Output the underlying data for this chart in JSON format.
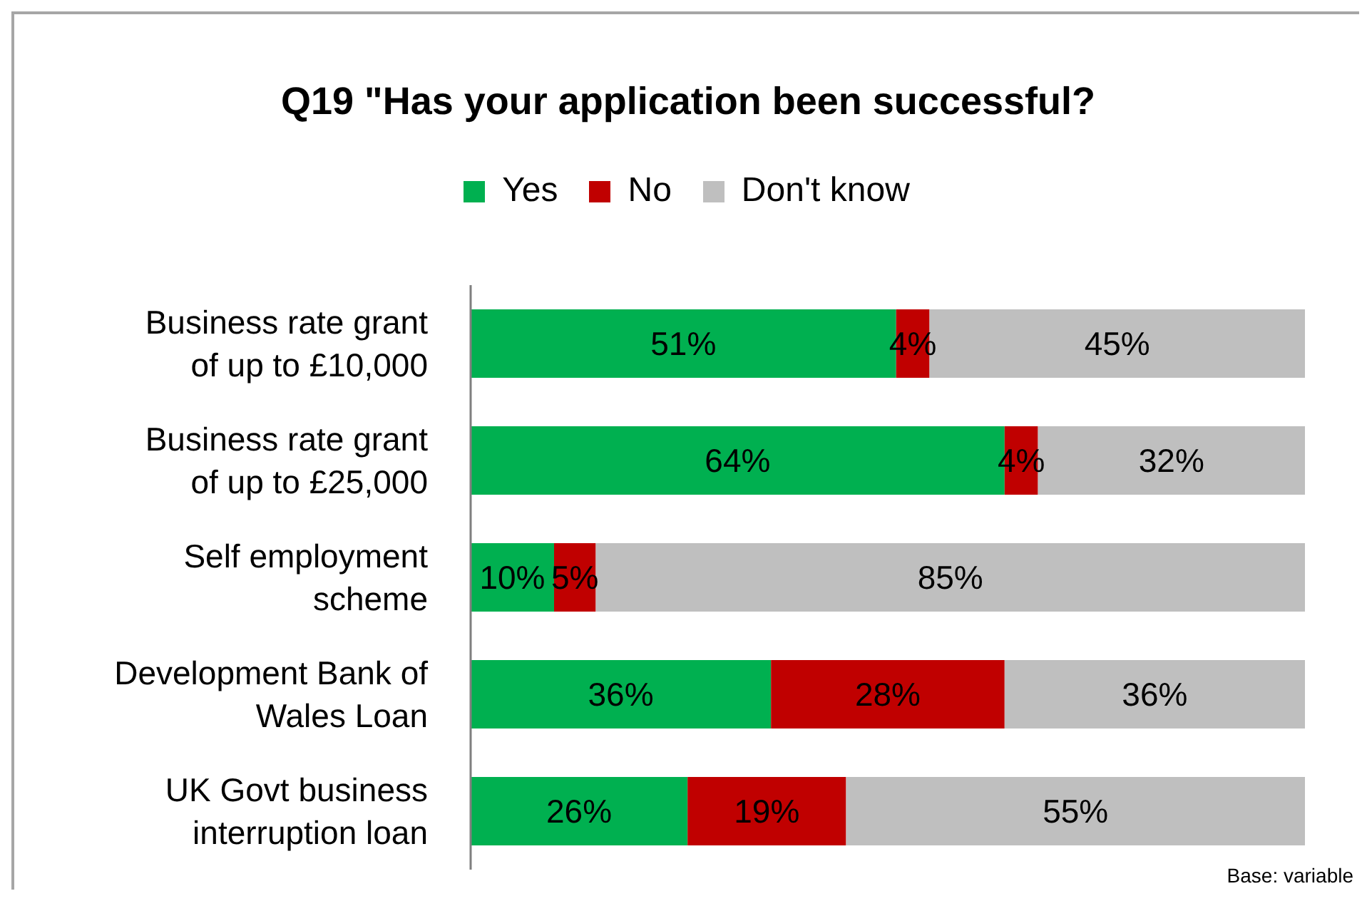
{
  "chart_data": {
    "type": "bar",
    "orientation": "horizontal",
    "stacked": true,
    "title": "Q19 \"Has your application been successful?",
    "legend": "top",
    "grid": false,
    "categories": [
      "Business rate grant of up to £10,000",
      "Business rate grant of up to £25,000",
      "Self employment scheme",
      "Development Bank of Wales Loan",
      "UK Govt business interruption loan"
    ],
    "series": [
      {
        "name": "Yes",
        "color": "#00b050",
        "values": [
          51,
          64,
          10,
          36,
          26
        ],
        "value_labels": [
          "51%",
          "64%",
          "10%",
          "36%",
          "26%"
        ]
      },
      {
        "name": "No",
        "color": "#c00000",
        "values": [
          4,
          4,
          5,
          28,
          19
        ],
        "value_labels": [
          "4%",
          "4%",
          "5%",
          "28%",
          "19%"
        ]
      },
      {
        "name": "Don't know",
        "color": "#bfbfbf",
        "values": [
          45,
          32,
          85,
          36,
          55
        ],
        "value_labels": [
          "45%",
          "32%",
          "85%",
          "36%",
          "55%"
        ]
      }
    ],
    "annotations": [
      "Base: variable"
    ]
  }
}
